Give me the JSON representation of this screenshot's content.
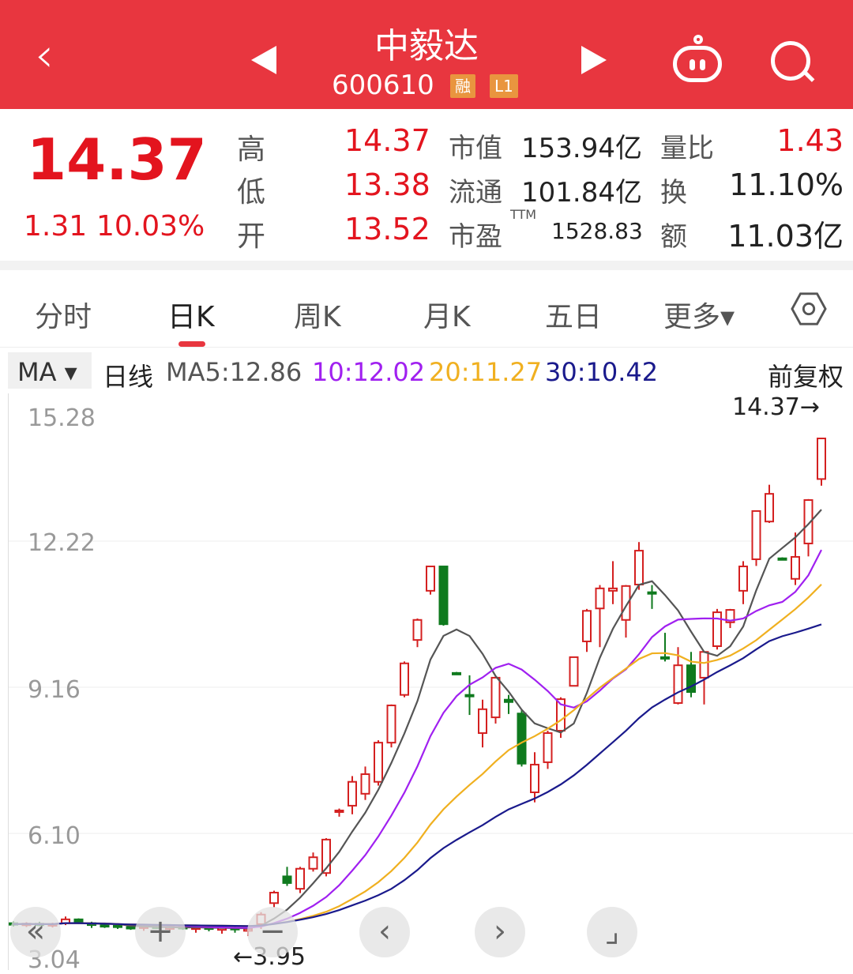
{
  "header": {
    "title": "中毅达",
    "code": "600610",
    "badges": [
      "融",
      "L1"
    ],
    "icons": [
      "back-icon",
      "prev-stock-icon",
      "next-stock-icon",
      "robot-icon",
      "search-icon"
    ]
  },
  "quote": {
    "price": "14.37",
    "change": "1.31",
    "change_pct": "10.03%",
    "high_label": "高",
    "high": "14.37",
    "low_label": "低",
    "low": "13.38",
    "open_label": "开",
    "open": "13.52",
    "mcap_label": "市值",
    "mcap": "153.94亿",
    "float_label": "流通",
    "float": "101.84亿",
    "pe_label": "市盈",
    "pe_sup": "TTM",
    "pe": "1528.83",
    "vr_label": "量比",
    "vr": "1.43",
    "turnover_label": "换",
    "turnover": "11.10%",
    "amount_label": "额",
    "amount": "11.03亿"
  },
  "tabs": [
    {
      "label": "分时"
    },
    {
      "label": "日K",
      "active": true
    },
    {
      "label": "周K"
    },
    {
      "label": "月K"
    },
    {
      "label": "五日"
    },
    {
      "label": "更多▾"
    }
  ],
  "ma_bar": {
    "selector": "MA ▾",
    "period": "日线",
    "ma5": "MA5:12.86",
    "ma10": "10:12.02",
    "ma20": "20:11.27",
    "ma30": "30:10.42",
    "adjust": "前复权"
  },
  "colors": {
    "header": "#e8363f",
    "up": "#d42020",
    "down": "#0f7a1e",
    "ma5": "#555555",
    "ma10": "#a020f0",
    "ma20": "#f0b020",
    "ma30": "#1a1a8c"
  },
  "chart_data": {
    "type": "candlestick",
    "y_ticks": [
      "15.28",
      "12.22",
      "9.16",
      "6.10",
      "3.04"
    ],
    "ylim": [
      3.04,
      15.28
    ],
    "annotations": {
      "max": "14.37→",
      "min": "←3.95"
    },
    "candles": [
      [
        4.22,
        4.26,
        4.15,
        4.2
      ],
      [
        4.2,
        4.24,
        4.14,
        4.21
      ],
      [
        4.21,
        4.25,
        4.16,
        4.19
      ],
      [
        4.19,
        4.23,
        4.13,
        4.2
      ],
      [
        4.22,
        4.36,
        4.18,
        4.3
      ],
      [
        4.3,
        4.32,
        4.2,
        4.22
      ],
      [
        4.22,
        4.25,
        4.12,
        4.18
      ],
      [
        4.18,
        4.22,
        4.12,
        4.17
      ],
      [
        4.17,
        4.2,
        4.1,
        4.14
      ],
      [
        4.14,
        4.18,
        4.08,
        4.12
      ],
      [
        4.12,
        4.18,
        4.06,
        4.15
      ],
      [
        4.15,
        4.19,
        4.1,
        4.13
      ],
      [
        4.1,
        4.16,
        4.05,
        4.14
      ],
      [
        4.14,
        4.18,
        4.08,
        4.12
      ],
      [
        4.1,
        4.15,
        4.02,
        4.13
      ],
      [
        4.13,
        4.16,
        4.05,
        4.11
      ],
      [
        4.08,
        4.14,
        4.0,
        4.12
      ],
      [
        4.12,
        4.15,
        4.02,
        4.1
      ],
      [
        4.06,
        4.12,
        3.95,
        4.1
      ],
      [
        4.2,
        4.45,
        4.1,
        4.4
      ],
      [
        4.64,
        4.9,
        4.55,
        4.86
      ],
      [
        5.2,
        5.4,
        5.0,
        5.06
      ],
      [
        4.94,
        5.4,
        4.85,
        5.36
      ],
      [
        5.36,
        5.7,
        5.3,
        5.6
      ],
      [
        5.27,
        6.0,
        5.2,
        5.97
      ],
      [
        6.55,
        6.62,
        6.45,
        6.58
      ],
      [
        6.68,
        7.3,
        6.5,
        7.18
      ],
      [
        6.93,
        7.5,
        6.8,
        7.34
      ],
      [
        7.18,
        8.05,
        7.1,
        8.0
      ],
      [
        8.0,
        8.8,
        7.9,
        8.78
      ],
      [
        9.0,
        9.7,
        8.95,
        9.66
      ],
      [
        10.15,
        10.6,
        10.0,
        10.57
      ],
      [
        11.18,
        11.7,
        11.1,
        11.69
      ],
      [
        11.69,
        11.69,
        10.45,
        10.48
      ],
      [
        9.46,
        9.48,
        9.44,
        9.45
      ],
      [
        9.0,
        9.41,
        8.58,
        8.98
      ],
      [
        8.2,
        8.9,
        7.9,
        8.7
      ],
      [
        8.53,
        9.4,
        8.4,
        9.36
      ],
      [
        8.9,
        9.0,
        8.6,
        8.85
      ],
      [
        8.61,
        8.7,
        7.5,
        7.56
      ],
      [
        6.96,
        7.8,
        6.75,
        7.54
      ],
      [
        7.59,
        8.25,
        7.45,
        8.2
      ],
      [
        8.25,
        8.95,
        8.1,
        8.91
      ],
      [
        9.19,
        9.8,
        9.19,
        9.79
      ],
      [
        10.12,
        10.8,
        9.9,
        10.76
      ],
      [
        10.81,
        11.3,
        10.0,
        11.23
      ],
      [
        11.18,
        11.8,
        10.9,
        11.23
      ],
      [
        10.57,
        11.3,
        10.2,
        11.28
      ],
      [
        11.31,
        12.2,
        11.2,
        12.02
      ],
      [
        11.15,
        11.3,
        10.8,
        11.14
      ],
      [
        9.79,
        10.3,
        9.7,
        9.78
      ],
      [
        8.83,
        10.0,
        8.8,
        9.62
      ],
      [
        9.62,
        9.9,
        8.95,
        9.06
      ],
      [
        9.36,
        9.9,
        8.8,
        9.9
      ],
      [
        10.02,
        10.8,
        9.95,
        10.73
      ],
      [
        10.52,
        10.8,
        10.4,
        10.78
      ],
      [
        11.18,
        11.8,
        10.9,
        11.69
      ],
      [
        11.84,
        12.85,
        11.7,
        12.85
      ],
      [
        12.63,
        13.4,
        12.6,
        13.21
      ],
      [
        11.86,
        11.88,
        11.84,
        11.85
      ],
      [
        11.43,
        12.4,
        11.3,
        11.89
      ],
      [
        12.17,
        13.1,
        11.9,
        13.08
      ],
      [
        13.52,
        14.37,
        13.38,
        14.37
      ]
    ],
    "series": [
      {
        "name": "MA5",
        "period": 5
      },
      {
        "name": "MA10",
        "period": 10
      },
      {
        "name": "MA20",
        "period": 20
      },
      {
        "name": "MA30",
        "period": 30
      }
    ]
  },
  "controls": [
    "rewind-icon",
    "zoom-in-icon",
    "zoom-out-icon",
    "pan-left-icon",
    "pan-right-icon",
    "fullscreen-icon"
  ],
  "control_glyphs": [
    "«",
    "+",
    "−",
    "‹",
    "›",
    "⌟"
  ]
}
